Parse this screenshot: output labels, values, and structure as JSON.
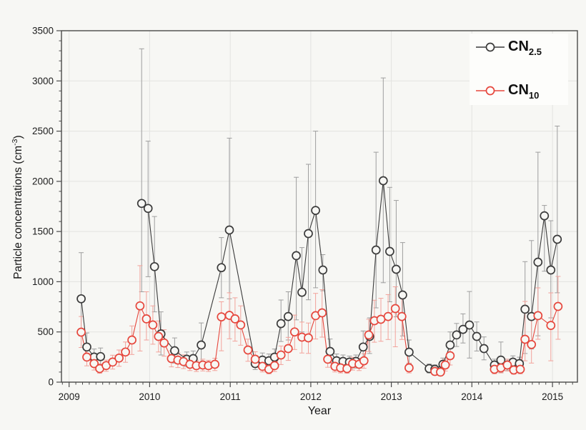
{
  "axes": {
    "x": {
      "label": "Year",
      "year_ticks": [
        2009,
        2010,
        2011,
        2012,
        2013,
        2014,
        2015
      ],
      "range": [
        2008.905,
        2015.31
      ],
      "minor_ticks": "monthly"
    },
    "y": {
      "label_main": "Particle concentrations (cm",
      "label_sup": "-3",
      "label_close": ")",
      "ticks": [
        0,
        500,
        1000,
        1500,
        2000,
        2500,
        3000,
        3500
      ],
      "range": [
        0,
        3500
      ],
      "minor_step": 100
    }
  },
  "legend": {
    "items": [
      {
        "main": "CN",
        "sub": "2.5",
        "series": "CN2.5"
      },
      {
        "main": "CN",
        "sub": "10",
        "series": "CN10"
      }
    ]
  },
  "colors": {
    "cn25": "#3a3a3a",
    "cn25_err": "#9e9e9e",
    "cn10": "#e6463c",
    "cn10_err": "#f2a29b",
    "grid": "#e3e3e0",
    "axis": "#4a4a4a",
    "text": "#1c1c1c",
    "bg": "#f7f7f4",
    "legend_bg": "#fdfdfb"
  },
  "chart_data": {
    "type": "line",
    "title": "",
    "xlabel": "Year",
    "ylabel": "Particle concentrations (cm-3)",
    "xlim": [
      2008.905,
      2015.31
    ],
    "ylim": [
      0,
      3500
    ],
    "grid": true,
    "legend_position": "top-right",
    "point_format": [
      "year",
      "value",
      "err_top",
      "err_bottom",
      "break_before"
    ],
    "series": [
      {
        "name": "CN2.5",
        "marker": "open-circle",
        "points": [
          [
            2009.15,
            830,
            1290,
            460
          ],
          [
            2009.22,
            350,
            490,
            230
          ],
          [
            2009.31,
            250,
            330,
            170
          ],
          [
            2009.39,
            255,
            340,
            175
          ],
          [
            2009.9,
            1780,
            3320,
            900,
            1
          ],
          [
            2009.98,
            1730,
            2400,
            1050
          ],
          [
            2010.06,
            1150,
            1650,
            700
          ],
          [
            2010.14,
            480,
            700,
            270
          ],
          [
            2010.31,
            313,
            440,
            190
          ],
          [
            2010.46,
            228,
            300,
            155
          ],
          [
            2010.54,
            235,
            310,
            160
          ],
          [
            2010.64,
            370,
            590,
            155
          ],
          [
            2010.89,
            1140,
            1440,
            840
          ],
          [
            2010.99,
            1515,
            2430,
            830
          ],
          [
            2011.31,
            185,
            245,
            125
          ],
          [
            2011.4,
            220,
            290,
            150
          ],
          [
            2011.48,
            213,
            280,
            145
          ],
          [
            2011.55,
            249,
            330,
            170
          ],
          [
            2011.63,
            583,
            818,
            405
          ],
          [
            2011.72,
            654,
            900,
            420
          ],
          [
            2011.82,
            1260,
            2040,
            620
          ],
          [
            2011.89,
            895,
            1340,
            500
          ],
          [
            2011.97,
            1480,
            2170,
            820
          ],
          [
            2012.06,
            1710,
            2500,
            940
          ],
          [
            2012.15,
            1117,
            1270,
            910
          ],
          [
            2012.24,
            306,
            430,
            190
          ],
          [
            2012.32,
            213,
            280,
            145
          ],
          [
            2012.4,
            206,
            270,
            140
          ],
          [
            2012.48,
            199,
            260,
            135
          ],
          [
            2012.56,
            206,
            270,
            140
          ],
          [
            2012.65,
            350,
            510,
            220
          ],
          [
            2012.73,
            455,
            640,
            285
          ],
          [
            2012.81,
            1316,
            2290,
            740
          ],
          [
            2012.9,
            2006,
            3030,
            990
          ],
          [
            2012.98,
            1302,
            1940,
            800
          ],
          [
            2013.06,
            1124,
            1810,
            650
          ],
          [
            2013.14,
            868,
            1390,
            460
          ],
          [
            2013.22,
            299,
            420,
            185
          ],
          [
            2013.47,
            135,
            180,
            92
          ],
          [
            2013.54,
            128,
            172,
            88
          ],
          [
            2013.64,
            178,
            240,
            118
          ],
          [
            2013.73,
            370,
            500,
            245
          ],
          [
            2013.81,
            470,
            585,
            355
          ],
          [
            2013.89,
            526,
            680,
            390
          ],
          [
            2013.97,
            569,
            903,
            240
          ],
          [
            2014.06,
            455,
            600,
            310
          ],
          [
            2014.15,
            334,
            450,
            222
          ],
          [
            2014.28,
            171,
            228,
            115
          ],
          [
            2014.36,
            220,
            400,
            95
          ],
          [
            2014.44,
            171,
            228,
            115
          ],
          [
            2014.51,
            199,
            262,
            132
          ],
          [
            2014.59,
            185,
            248,
            122
          ],
          [
            2014.66,
            726,
            1200,
            285
          ],
          [
            2014.74,
            654,
            1410,
            330
          ],
          [
            2014.82,
            1195,
            2290,
            462
          ],
          [
            2014.9,
            1657,
            1760,
            1105
          ],
          [
            2014.98,
            1117,
            1608,
            640
          ],
          [
            2015.06,
            1423,
            2550,
            890
          ]
        ]
      },
      {
        "name": "CN10",
        "marker": "open-circle",
        "points": [
          [
            2009.15,
            498,
            654,
            345
          ],
          [
            2009.22,
            250,
            335,
            162
          ],
          [
            2009.31,
            185,
            248,
            120
          ],
          [
            2009.38,
            135,
            182,
            88
          ],
          [
            2009.46,
            165,
            220,
            108
          ],
          [
            2009.54,
            200,
            268,
            130
          ],
          [
            2009.62,
            240,
            320,
            158
          ],
          [
            2009.7,
            300,
            400,
            198
          ],
          [
            2009.78,
            420,
            560,
            275
          ],
          [
            2009.88,
            760,
            1160,
            310
          ],
          [
            2009.96,
            630,
            900,
            420
          ],
          [
            2010.04,
            570,
            760,
            378
          ],
          [
            2010.11,
            455,
            610,
            300
          ],
          [
            2010.18,
            390,
            522,
            258
          ],
          [
            2010.27,
            235,
            312,
            152
          ],
          [
            2010.35,
            220,
            292,
            145
          ],
          [
            2010.42,
            205,
            272,
            135
          ],
          [
            2010.5,
            178,
            238,
            115
          ],
          [
            2010.58,
            164,
            218,
            106
          ],
          [
            2010.66,
            171,
            228,
            112
          ],
          [
            2010.73,
            164,
            218,
            106
          ],
          [
            2010.81,
            178,
            238,
            115
          ],
          [
            2010.89,
            650,
            800,
            312
          ],
          [
            2010.99,
            665,
            890,
            432
          ],
          [
            2011.06,
            630,
            840,
            408
          ],
          [
            2011.13,
            570,
            760,
            368
          ],
          [
            2011.22,
            320,
            428,
            208
          ],
          [
            2011.31,
            228,
            302,
            148
          ],
          [
            2011.4,
            157,
            210,
            102
          ],
          [
            2011.48,
            128,
            172,
            83
          ],
          [
            2011.55,
            164,
            219,
            106
          ],
          [
            2011.63,
            270,
            360,
            175
          ],
          [
            2011.72,
            334,
            446,
            216
          ],
          [
            2011.8,
            500,
            668,
            325
          ],
          [
            2011.89,
            448,
            598,
            290
          ],
          [
            2011.97,
            441,
            589,
            286
          ],
          [
            2012.06,
            662,
            884,
            430
          ],
          [
            2012.14,
            690,
            921,
            448
          ],
          [
            2012.21,
            228,
            304,
            148
          ],
          [
            2012.3,
            157,
            209,
            102
          ],
          [
            2012.37,
            142,
            190,
            92
          ],
          [
            2012.45,
            135,
            180,
            88
          ],
          [
            2012.52,
            185,
            247,
            120
          ],
          [
            2012.6,
            178,
            238,
            115
          ],
          [
            2012.66,
            213,
            284,
            138
          ],
          [
            2012.72,
            470,
            627,
            305
          ],
          [
            2012.79,
            612,
            816,
            398
          ],
          [
            2012.87,
            626,
            835,
            407
          ],
          [
            2012.96,
            654,
            872,
            425
          ],
          [
            2013.05,
            733,
            950,
            352
          ],
          [
            2013.13,
            654,
            872,
            425
          ],
          [
            2013.22,
            142,
            190,
            92
          ],
          [
            2013.54,
            107,
            143,
            70,
            1
          ],
          [
            2013.61,
            100,
            134,
            65
          ],
          [
            2013.67,
            171,
            228,
            111
          ],
          [
            2013.73,
            263,
            351,
            171
          ],
          [
            2014.28,
            128,
            171,
            83,
            1
          ],
          [
            2014.36,
            142,
            190,
            92
          ],
          [
            2014.44,
            171,
            228,
            111
          ],
          [
            2014.52,
            121,
            162,
            79
          ],
          [
            2014.6,
            128,
            171,
            83
          ],
          [
            2014.66,
            427,
            804,
            213
          ],
          [
            2014.74,
            375,
            620,
            190
          ],
          [
            2014.82,
            662,
            939,
            427
          ],
          [
            2014.98,
            565,
            889,
            213
          ],
          [
            2015.07,
            754,
            1053,
            427
          ]
        ]
      }
    ]
  }
}
